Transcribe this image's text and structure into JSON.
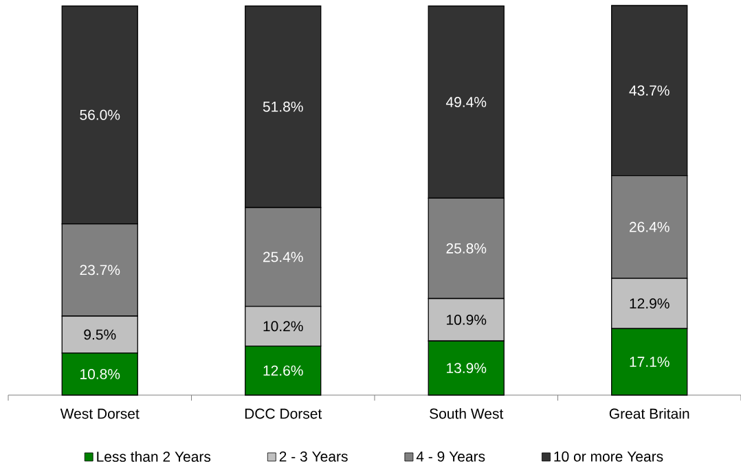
{
  "chart_data": {
    "type": "bar",
    "stacked": true,
    "tick_labels": "x",
    "legend": "bottom",
    "categories": [
      "West Dorset",
      "DCC Dorset",
      "South West",
      "Great Britain"
    ],
    "series": [
      {
        "name": "Less than 2 Years",
        "color": "#008000",
        "values": [
          10.8,
          12.6,
          13.9,
          17.1
        ],
        "value_labels": [
          "10.8%",
          "12.6%",
          "13.9%",
          "17.1%"
        ]
      },
      {
        "name": "2 - 3 Years",
        "color": "#c0c0c0",
        "values": [
          9.5,
          10.2,
          10.9,
          12.9
        ],
        "value_labels": [
          "9.5%",
          "10.2%",
          "10.9%",
          "12.9%"
        ]
      },
      {
        "name": "4 - 9 Years",
        "color": "#808080",
        "values": [
          23.7,
          25.4,
          25.8,
          26.4
        ],
        "value_labels": [
          "23.7%",
          "25.4%",
          "25.8%",
          "26.4%"
        ]
      },
      {
        "name": "10 or more Years",
        "color": "#333333",
        "values": [
          56.0,
          51.8,
          49.4,
          43.7
        ],
        "value_labels": [
          "56.0%",
          "51.8%",
          "49.4%",
          "43.7%"
        ]
      }
    ]
  }
}
